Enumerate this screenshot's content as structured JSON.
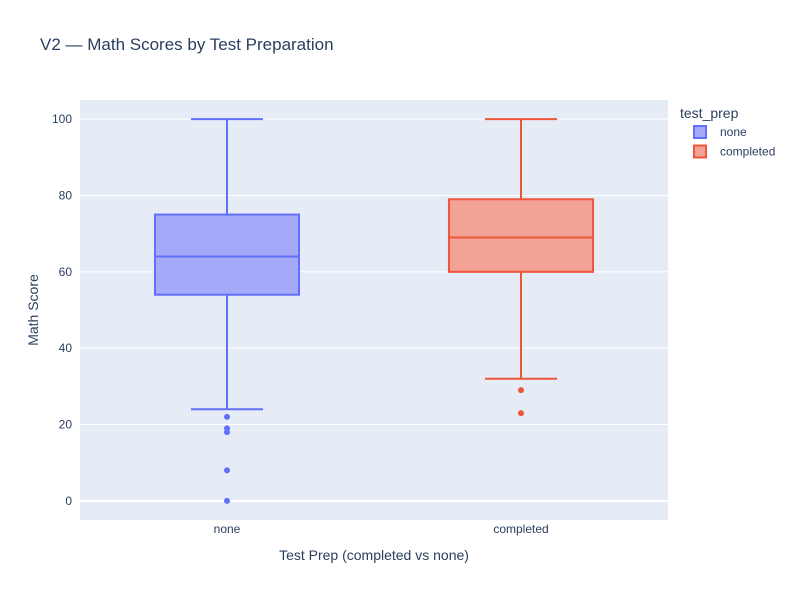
{
  "chart_data": {
    "type": "box",
    "title": "V2 — Math Scores by Test Preparation",
    "xlabel": "Test Prep (completed vs none)",
    "ylabel": "Math Score",
    "categories": [
      "none",
      "completed"
    ],
    "ylim": [
      -5,
      105
    ],
    "yticks": [
      0,
      20,
      40,
      60,
      80,
      100
    ],
    "ytick_labels": [
      "0",
      "20",
      "40",
      "60",
      "80",
      "100"
    ],
    "grid": true,
    "legend": {
      "title": "test_prep",
      "placement": "top-right"
    },
    "series": [
      {
        "name": "none",
        "color": "#636efa",
        "fill": "#a4aaf8",
        "q1": 54,
        "median": 64,
        "q3": 75,
        "lower_fence": 24,
        "upper_fence": 100,
        "outliers": [
          22,
          19,
          18,
          8,
          0
        ]
      },
      {
        "name": "completed",
        "color": "#ef553b",
        "fill": "#f2a396",
        "q1": 60,
        "median": 69,
        "q3": 79,
        "lower_fence": 32,
        "upper_fence": 100,
        "outliers": [
          29,
          23
        ]
      }
    ]
  }
}
